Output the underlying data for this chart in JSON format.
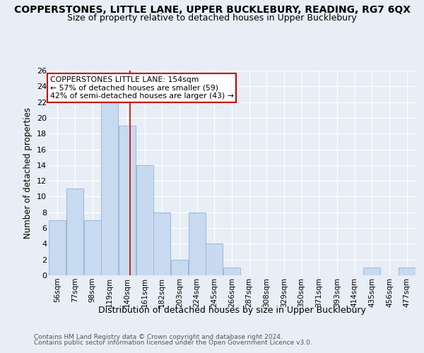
{
  "title": "COPPERSTONES, LITTLE LANE, UPPER BUCKLEBURY, READING, RG7 6QX",
  "subtitle": "Size of property relative to detached houses in Upper Bucklebury",
  "xlabel": "Distribution of detached houses by size in Upper Bucklebury",
  "ylabel": "Number of detached properties",
  "footnote1": "Contains HM Land Registry data © Crown copyright and database right 2024.",
  "footnote2": "Contains public sector information licensed under the Open Government Licence v3.0.",
  "bin_labels": [
    "56sqm",
    "77sqm",
    "98sqm",
    "119sqm",
    "140sqm",
    "161sqm",
    "182sqm",
    "203sqm",
    "224sqm",
    "245sqm",
    "266sqm",
    "287sqm",
    "308sqm",
    "329sqm",
    "350sqm",
    "371sqm",
    "393sqm",
    "414sqm",
    "435sqm",
    "456sqm",
    "477sqm"
  ],
  "bin_edges": [
    56,
    77,
    98,
    119,
    140,
    161,
    182,
    203,
    224,
    245,
    266,
    287,
    308,
    329,
    350,
    371,
    393,
    414,
    435,
    456,
    477
  ],
  "counts": [
    7,
    11,
    7,
    22,
    19,
    14,
    8,
    2,
    8,
    4,
    1,
    0,
    0,
    0,
    0,
    0,
    0,
    0,
    1,
    0,
    1
  ],
  "bar_color": "#c8daf0",
  "bar_edge_color": "#9ab8d8",
  "red_line_x": 154,
  "annotation_title": "COPPERSTONES LITTLE LANE: 154sqm",
  "annotation_line1": "← 57% of detached houses are smaller (59)",
  "annotation_line2": "42% of semi-detached houses are larger (43) →",
  "annotation_box_color": "#ffffff",
  "annotation_border_color": "#cc0000",
  "red_line_color": "#cc0000",
  "ylim": [
    0,
    26
  ],
  "yticks": [
    0,
    2,
    4,
    6,
    8,
    10,
    12,
    14,
    16,
    18,
    20,
    22,
    24,
    26
  ],
  "background_color": "#e8eef5",
  "grid_color": "#ffffff",
  "title_fontsize": 10,
  "subtitle_fontsize": 9
}
